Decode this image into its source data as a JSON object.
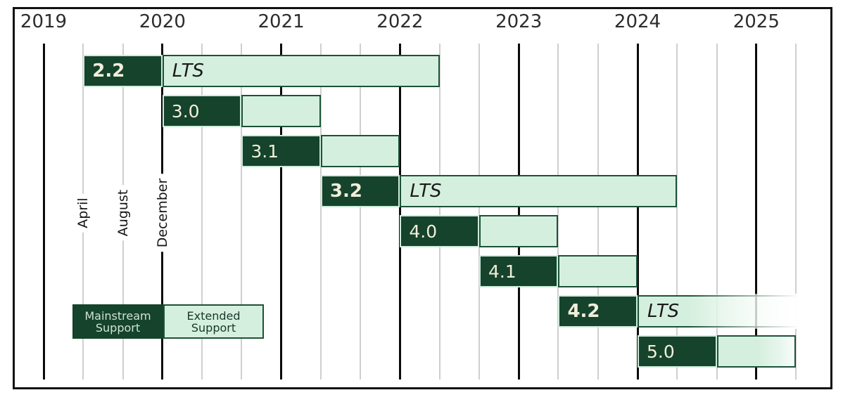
{
  "axis": {
    "years": [
      "2019",
      "2020",
      "2021",
      "2022",
      "2023",
      "2024",
      "2025"
    ],
    "months": [
      "April",
      "August",
      "December"
    ]
  },
  "legend": {
    "mainstream_line1": "Mainstream",
    "mainstream_line2": "Support",
    "extended_line1": "Extended",
    "extended_line2": "Support"
  },
  "colors": {
    "mainstream_dark": "#15432c",
    "extended_light": "#d5efde",
    "segment_border_dark": "#1c5237",
    "segment_border_light": "#cdeadb",
    "grid_minor": "#cfcfcf",
    "grid_major": "#0b0b0b",
    "bar_label_text": "#f1eedb",
    "lts_label_text": "#1b1b1b",
    "year_label": "#2d2d2d",
    "frame": "#111111"
  },
  "chart_data": {
    "type": "gantt",
    "x_axis": {
      "unit": "years",
      "major_ticks": [
        "2019",
        "2020",
        "2021",
        "2022",
        "2023",
        "2024",
        "2025"
      ],
      "minor_tick_months": [
        "April",
        "August",
        "December"
      ],
      "minor_ticks_per_year": 3,
      "range": [
        2019,
        2025.67
      ]
    },
    "legend": [
      "Mainstream Support",
      "Extended Support"
    ],
    "lts_label": "LTS",
    "versions": [
      {
        "label": "2.2",
        "lts": true,
        "mainstream": {
          "from": "April 2019",
          "to": "December 2019"
        },
        "extended": {
          "from": "December 2019",
          "to": "April 2022"
        },
        "t": [
          2019.3333,
          2020.0,
          2022.3333
        ],
        "fade_out": false
      },
      {
        "label": "3.0",
        "lts": false,
        "mainstream": {
          "from": "December 2019",
          "to": "August 2020"
        },
        "extended": {
          "from": "August 2020",
          "to": "April 2021"
        },
        "t": [
          2020.0,
          2020.6667,
          2021.3333
        ],
        "fade_out": false
      },
      {
        "label": "3.1",
        "lts": false,
        "mainstream": {
          "from": "August 2020",
          "to": "April 2021"
        },
        "extended": {
          "from": "April 2021",
          "to": "December 2021"
        },
        "t": [
          2020.6667,
          2021.3333,
          2022.0
        ],
        "fade_out": false
      },
      {
        "label": "3.2",
        "lts": true,
        "mainstream": {
          "from": "April 2021",
          "to": "December 2021"
        },
        "extended": {
          "from": "December 2021",
          "to": "April 2024"
        },
        "t": [
          2021.3333,
          2022.0,
          2024.3333
        ],
        "fade_out": false
      },
      {
        "label": "4.0",
        "lts": false,
        "mainstream": {
          "from": "December 2021",
          "to": "August 2022"
        },
        "extended": {
          "from": "August 2022",
          "to": "April 2023"
        },
        "t": [
          2022.0,
          2022.6667,
          2023.3333
        ],
        "fade_out": false
      },
      {
        "label": "4.1",
        "lts": false,
        "mainstream": {
          "from": "August 2022",
          "to": "April 2023"
        },
        "extended": {
          "from": "April 2023",
          "to": "December 2023"
        },
        "t": [
          2022.6667,
          2023.3333,
          2024.0
        ],
        "fade_out": false
      },
      {
        "label": "4.2",
        "lts": true,
        "mainstream": {
          "from": "April 2023",
          "to": "December 2023"
        },
        "extended": {
          "from": "December 2023",
          "to": null
        },
        "open_ended": true,
        "t": [
          2023.3333,
          2024.0,
          2025.55
        ],
        "fade_out": true
      },
      {
        "label": "5.0",
        "lts": false,
        "mainstream": {
          "from": "December 2023",
          "to": "August 2024"
        },
        "extended": {
          "from": "August 2024",
          "to": "April 2025"
        },
        "t": [
          2024.0,
          2024.6667,
          2025.3333
        ],
        "fade_out": "slight"
      }
    ]
  }
}
